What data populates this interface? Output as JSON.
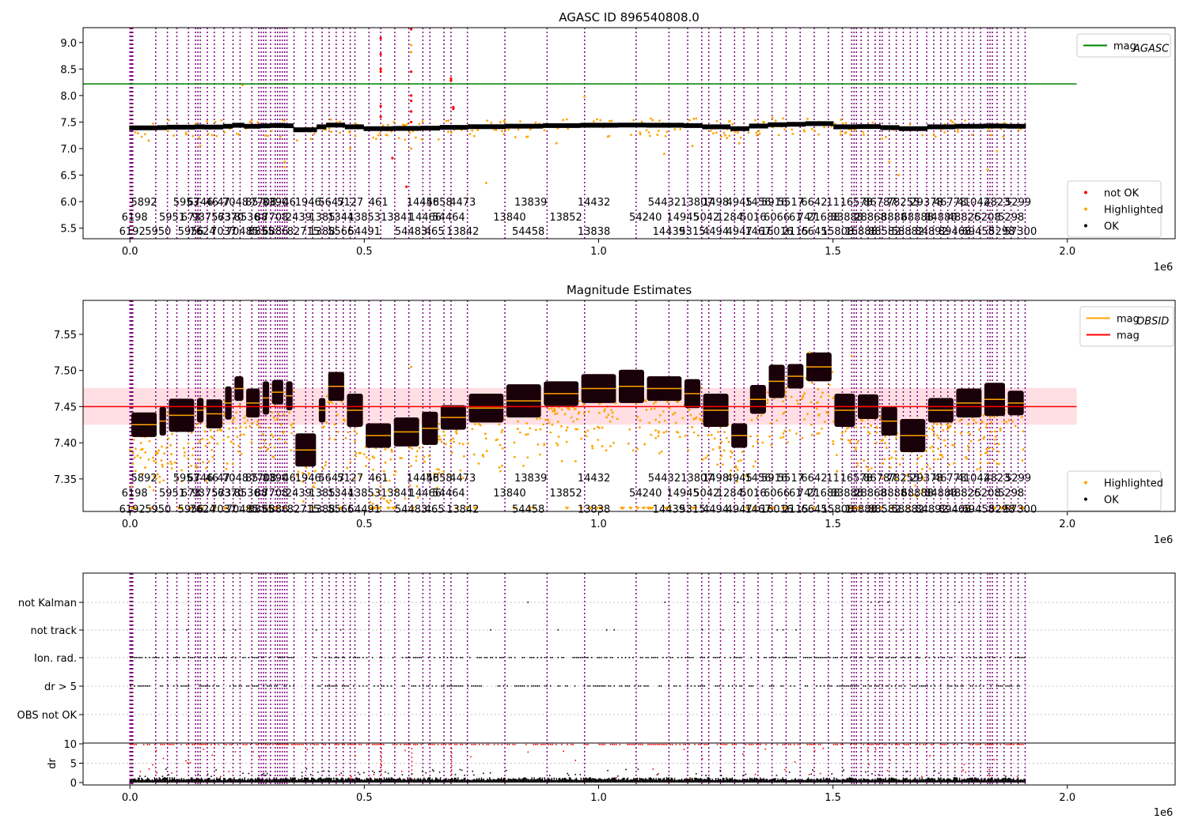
{
  "chart_data": [
    {
      "type": "scatter",
      "title": "AGASC ID 896540808.0",
      "x_scale_label": "1e6",
      "xlim": [
        -0.1,
        2.23
      ],
      "ylim": [
        5.3,
        9.28
      ],
      "x_ticks": [
        {
          "v": 0.0,
          "label": "0.0"
        },
        {
          "v": 0.5,
          "label": "0.5"
        },
        {
          "v": 1.0,
          "label": "1.0"
        },
        {
          "v": 1.5,
          "label": "1.5"
        },
        {
          "v": 2.0,
          "label": "2.0"
        }
      ],
      "y_ticks": [
        {
          "v": 5.5,
          "label": "5.5"
        },
        {
          "v": 6.0,
          "label": "6.0"
        },
        {
          "v": 6.5,
          "label": "6.5"
        },
        {
          "v": 7.0,
          "label": "7.0"
        },
        {
          "v": 7.5,
          "label": "7.5"
        },
        {
          "v": 8.0,
          "label": "8.0"
        },
        {
          "v": 8.5,
          "label": "8.5"
        },
        {
          "v": 9.0,
          "label": "9.0"
        }
      ],
      "obsid_label_y": [
        6.0,
        5.72,
        5.45
      ],
      "hlines": [
        {
          "y": 8.22,
          "x0": -0.1,
          "x1": 2.02,
          "color": "#008000"
        }
      ],
      "legends": [
        {
          "position": "top-right",
          "entries": [
            {
              "kind": "line",
              "color": "#008000",
              "label": "mag",
              "sub": "AGASC"
            }
          ]
        },
        {
          "position": "bottom-right",
          "entries": [
            {
              "kind": "dot",
              "color": "#ff0000",
              "label": "not OK"
            },
            {
              "kind": "dot",
              "color": "#ffa500",
              "label": "Highlighted"
            },
            {
              "kind": "dot",
              "color": "#000000",
              "label": "OK"
            }
          ]
        }
      ],
      "red_points": [
        [
          0.535,
          9.08
        ],
        [
          0.535,
          8.78
        ],
        [
          0.535,
          8.5
        ],
        [
          0.535,
          8.45
        ],
        [
          0.535,
          7.8
        ],
        [
          0.535,
          7.6
        ],
        [
          0.56,
          6.82
        ],
        [
          0.6,
          9.25
        ],
        [
          0.6,
          8.45
        ],
        [
          0.6,
          8.0
        ],
        [
          0.6,
          7.9
        ],
        [
          0.6,
          7.7
        ],
        [
          0.6,
          7.5
        ],
        [
          0.59,
          6.28
        ],
        [
          0.685,
          8.32
        ],
        [
          0.685,
          8.28
        ],
        [
          0.69,
          7.78
        ],
        [
          0.69,
          7.75
        ]
      ],
      "orange_points": [
        [
          0.6,
          8.95
        ],
        [
          0.6,
          8.82
        ],
        [
          0.97,
          7.98
        ],
        [
          0.24,
          8.2
        ],
        [
          0.04,
          7.15
        ],
        [
          0.15,
          7.05
        ],
        [
          0.33,
          6.75
        ],
        [
          0.33,
          6.65
        ],
        [
          0.47,
          7.0
        ],
        [
          0.6,
          7.0
        ],
        [
          0.76,
          6.35
        ],
        [
          0.91,
          7.1
        ],
        [
          1.14,
          6.9
        ],
        [
          1.2,
          7.05
        ],
        [
          1.27,
          7.25
        ],
        [
          1.3,
          7.1
        ],
        [
          1.62,
          6.75
        ],
        [
          1.64,
          6.5
        ],
        [
          1.83,
          6.6
        ],
        [
          1.85,
          6.95
        ]
      ],
      "black_band": {
        "lower_offset": -0.05,
        "upper_offset": 0.04
      }
    },
    {
      "type": "scatter",
      "title": "Magnitude Estimates",
      "x_scale_label": "1e6",
      "xlim": [
        -0.1,
        2.23
      ],
      "ylim": [
        7.305,
        7.597
      ],
      "x_ticks": [
        {
          "v": 0.0,
          "label": "0.0"
        },
        {
          "v": 0.5,
          "label": "0.5"
        },
        {
          "v": 1.0,
          "label": "1.0"
        },
        {
          "v": 1.5,
          "label": "1.5"
        },
        {
          "v": 2.0,
          "label": "2.0"
        }
      ],
      "y_ticks": [
        {
          "v": 7.35,
          "label": "7.35"
        },
        {
          "v": 7.4,
          "label": "7.40"
        },
        {
          "v": 7.45,
          "label": "7.45"
        },
        {
          "v": 7.5,
          "label": "7.50"
        },
        {
          "v": 7.55,
          "label": "7.55"
        }
      ],
      "obsid_label_y": [
        7.352,
        7.331,
        7.309
      ],
      "mag_band": {
        "y0": 7.425,
        "y1": 7.476,
        "x0": -0.1,
        "x1": 2.02,
        "color": "#ffc0c8"
      },
      "hlines": [
        {
          "y": 7.45,
          "x0": -0.1,
          "x1": 2.02,
          "color": "#ff0000"
        }
      ],
      "legends": [
        {
          "position": "top-right",
          "entries": [
            {
              "kind": "line",
              "color": "#ffa500",
              "label": "mag",
              "sub": "OBSID"
            },
            {
              "kind": "line",
              "color": "#ff0000",
              "label": "mag"
            }
          ]
        },
        {
          "position": "bottom-right",
          "entries": [
            {
              "kind": "dot",
              "color": "#ffa500",
              "label": "Highlighted"
            },
            {
              "kind": "dot",
              "color": "#000000",
              "label": "OK"
            }
          ]
        }
      ],
      "obs_segments": [
        [
          0.0,
          0.06,
          7.425
        ],
        [
          0.06,
          0.08,
          7.43
        ],
        [
          0.08,
          0.14,
          7.438
        ],
        [
          0.14,
          0.16,
          7.445
        ],
        [
          0.16,
          0.2,
          7.44
        ],
        [
          0.2,
          0.22,
          7.455
        ],
        [
          0.22,
          0.245,
          7.475
        ],
        [
          0.245,
          0.28,
          7.455
        ],
        [
          0.28,
          0.3,
          7.462
        ],
        [
          0.3,
          0.33,
          7.47
        ],
        [
          0.33,
          0.35,
          7.465
        ],
        [
          0.35,
          0.4,
          7.39
        ],
        [
          0.4,
          0.42,
          7.445
        ],
        [
          0.42,
          0.46,
          7.478
        ],
        [
          0.46,
          0.5,
          7.445
        ],
        [
          0.5,
          0.56,
          7.41
        ],
        [
          0.56,
          0.62,
          7.415
        ],
        [
          0.62,
          0.66,
          7.42
        ],
        [
          0.66,
          0.72,
          7.435
        ],
        [
          0.72,
          0.8,
          7.448
        ],
        [
          0.8,
          0.88,
          7.458
        ],
        [
          0.88,
          0.96,
          7.468
        ],
        [
          0.96,
          1.04,
          7.475
        ],
        [
          1.04,
          1.1,
          7.478
        ],
        [
          1.1,
          1.18,
          7.475
        ],
        [
          1.18,
          1.22,
          7.468
        ],
        [
          1.22,
          1.28,
          7.445
        ],
        [
          1.28,
          1.32,
          7.41
        ],
        [
          1.32,
          1.36,
          7.46
        ],
        [
          1.36,
          1.4,
          7.485
        ],
        [
          1.4,
          1.44,
          7.492
        ],
        [
          1.44,
          1.5,
          7.505
        ],
        [
          1.5,
          1.55,
          7.445
        ],
        [
          1.55,
          1.6,
          7.45
        ],
        [
          1.6,
          1.64,
          7.43
        ],
        [
          1.64,
          1.7,
          7.41
        ],
        [
          1.7,
          1.76,
          7.445
        ],
        [
          1.76,
          1.82,
          7.455
        ],
        [
          1.82,
          1.87,
          7.46
        ],
        [
          1.87,
          1.91,
          7.455
        ]
      ]
    },
    {
      "type": "scatter",
      "title": "",
      "x_scale_label": "1e6",
      "xlim": [
        -0.1,
        2.23
      ],
      "categories": [
        "not Kalman",
        "not track",
        "Ion. rad.",
        "dr > 5",
        "OBS not OK"
      ],
      "dr_ylim": [
        -0.5,
        10.5
      ],
      "dr_ticks": [
        {
          "v": 0,
          "label": "0"
        },
        {
          "v": 5,
          "label": "5"
        },
        {
          "v": 10,
          "label": "10"
        }
      ],
      "dr_ylabel": "dr",
      "x_ticks": [
        {
          "v": 0.0,
          "label": "0.0"
        },
        {
          "v": 0.5,
          "label": "0.5"
        },
        {
          "v": 1.0,
          "label": "1.0"
        },
        {
          "v": 1.5,
          "label": "1.5"
        },
        {
          "v": 2.0,
          "label": "2.0"
        }
      ]
    }
  ],
  "obsid_vlines": [
    0.0,
    0.002,
    0.004,
    0.006,
    0.055,
    0.08,
    0.1,
    0.125,
    0.14,
    0.145,
    0.15,
    0.165,
    0.18,
    0.2,
    0.22,
    0.235,
    0.26,
    0.275,
    0.28,
    0.285,
    0.29,
    0.3,
    0.31,
    0.315,
    0.32,
    0.325,
    0.33,
    0.335,
    0.35,
    0.375,
    0.39,
    0.41,
    0.425,
    0.44,
    0.455,
    0.47,
    0.48,
    0.51,
    0.535,
    0.565,
    0.595,
    0.625,
    0.64,
    0.67,
    0.685,
    0.72,
    0.8,
    0.89,
    0.97,
    1.08,
    1.15,
    1.19,
    1.22,
    1.235,
    1.26,
    1.29,
    1.31,
    1.34,
    1.37,
    1.4,
    1.43,
    1.46,
    1.49,
    1.52,
    1.54,
    1.545,
    1.55,
    1.56,
    1.575,
    1.59,
    1.6,
    1.605,
    1.62,
    1.635,
    1.65,
    1.665,
    1.68,
    1.7,
    1.715,
    1.73,
    1.745,
    1.76,
    1.775,
    1.79,
    1.8,
    1.815,
    1.83,
    1.835,
    1.84,
    1.85,
    1.865,
    1.88,
    1.895,
    1.91
  ],
  "obsid_labels": {
    "row1": [
      {
        "x": 0.03,
        "t": "5892"
      },
      {
        "x": 0.12,
        "t": "5953"
      },
      {
        "x": 0.15,
        "t": "6746"
      },
      {
        "x": 0.175,
        "t": "46"
      },
      {
        "x": 0.2,
        "t": "47"
      },
      {
        "x": 0.225,
        "t": "7048"
      },
      {
        "x": 0.26,
        "t": "85"
      },
      {
        "x": 0.285,
        "t": "7708"
      },
      {
        "x": 0.31,
        "t": "8390"
      },
      {
        "x": 0.34,
        "t": "46"
      },
      {
        "x": 0.38,
        "t": "1946"
      },
      {
        "x": 0.43,
        "t": "5647"
      },
      {
        "x": 0.47,
        "t": "5127"
      },
      {
        "x": 0.53,
        "t": "461"
      },
      {
        "x": 0.625,
        "t": "14456"
      },
      {
        "x": 0.66,
        "t": "4858"
      },
      {
        "x": 0.71,
        "t": "4473"
      },
      {
        "x": 0.855,
        "t": "13839"
      },
      {
        "x": 0.99,
        "t": "14432"
      },
      {
        "x": 1.14,
        "t": "54432"
      },
      {
        "x": 1.21,
        "t": "13807"
      },
      {
        "x": 1.25,
        "t": "1498"
      },
      {
        "x": 1.3,
        "t": "4945"
      },
      {
        "x": 1.34,
        "t": "1456"
      },
      {
        "x": 1.375,
        "t": "5916"
      },
      {
        "x": 1.41,
        "t": "5517"
      },
      {
        "x": 1.46,
        "t": "6642"
      },
      {
        "x": 1.5,
        "t": "11"
      },
      {
        "x": 1.55,
        "t": "16578"
      },
      {
        "x": 1.6,
        "t": "86787"
      },
      {
        "x": 1.65,
        "t": "78255"
      },
      {
        "x": 1.7,
        "t": "29378"
      },
      {
        "x": 1.75,
        "t": "46778"
      },
      {
        "x": 1.8,
        "t": "41042"
      },
      {
        "x": 1.85,
        "t": "4823"
      },
      {
        "x": 1.895,
        "t": "5299"
      }
    ],
    "row2": [
      {
        "x": 0.01,
        "t": "6198"
      },
      {
        "x": 0.09,
        "t": "5951"
      },
      {
        "x": 0.13,
        "t": "673"
      },
      {
        "x": 0.16,
        "t": "9375"
      },
      {
        "x": 0.195,
        "t": "573"
      },
      {
        "x": 0.215,
        "t": "6370"
      },
      {
        "x": 0.25,
        "t": "8536"
      },
      {
        "x": 0.28,
        "t": "88"
      },
      {
        "x": 0.31,
        "t": "7708"
      },
      {
        "x": 0.36,
        "t": "2439"
      },
      {
        "x": 0.41,
        "t": "1385"
      },
      {
        "x": 0.45,
        "t": "1344"
      },
      {
        "x": 0.5,
        "t": "13853"
      },
      {
        "x": 0.57,
        "t": "13841"
      },
      {
        "x": 0.63,
        "t": "14466"
      },
      {
        "x": 0.68,
        "t": "54464"
      },
      {
        "x": 0.81,
        "t": "13840"
      },
      {
        "x": 0.93,
        "t": "13852"
      },
      {
        "x": 1.1,
        "t": "54240"
      },
      {
        "x": 1.18,
        "t": "14945"
      },
      {
        "x": 1.23,
        "t": "5042"
      },
      {
        "x": 1.28,
        "t": "1284"
      },
      {
        "x": 1.33,
        "t": "5016"
      },
      {
        "x": 1.38,
        "t": "6066"
      },
      {
        "x": 1.42,
        "t": "61"
      },
      {
        "x": 1.445,
        "t": "747"
      },
      {
        "x": 1.48,
        "t": "21688"
      },
      {
        "x": 1.53,
        "t": "83888"
      },
      {
        "x": 1.58,
        "t": "28868"
      },
      {
        "x": 1.63,
        "t": "8888"
      },
      {
        "x": 1.68,
        "t": "68888"
      },
      {
        "x": 1.73,
        "t": "84886"
      },
      {
        "x": 1.78,
        "t": "48826"
      },
      {
        "x": 1.83,
        "t": "5208"
      },
      {
        "x": 1.88,
        "t": "5298"
      }
    ],
    "row3": [
      {
        "x": 0.005,
        "t": "6192"
      },
      {
        "x": 0.06,
        "t": "5950"
      },
      {
        "x": 0.13,
        "t": "5956"
      },
      {
        "x": 0.155,
        "t": "7624"
      },
      {
        "x": 0.2,
        "t": "7037"
      },
      {
        "x": 0.24,
        "t": "70485"
      },
      {
        "x": 0.28,
        "t": "8855"
      },
      {
        "x": 0.31,
        "t": "6886"
      },
      {
        "x": 0.37,
        "t": "82715"
      },
      {
        "x": 0.41,
        "t": "1388"
      },
      {
        "x": 0.45,
        "t": "5566"
      },
      {
        "x": 0.5,
        "t": "54491"
      },
      {
        "x": 0.6,
        "t": "54483"
      },
      {
        "x": 0.65,
        "t": "465"
      },
      {
        "x": 0.71,
        "t": "13842"
      },
      {
        "x": 0.85,
        "t": "54458"
      },
      {
        "x": 0.99,
        "t": "13838"
      },
      {
        "x": 1.15,
        "t": "14439"
      },
      {
        "x": 1.2,
        "t": "5315"
      },
      {
        "x": 1.25,
        "t": "4494"
      },
      {
        "x": 1.3,
        "t": "4947"
      },
      {
        "x": 1.34,
        "t": "1467"
      },
      {
        "x": 1.38,
        "t": "16016"
      },
      {
        "x": 1.42,
        "t": "2115"
      },
      {
        "x": 1.46,
        "t": "6645"
      },
      {
        "x": 1.51,
        "t": "15808"
      },
      {
        "x": 1.56,
        "t": "16888"
      },
      {
        "x": 1.61,
        "t": "88582"
      },
      {
        "x": 1.66,
        "t": "58882"
      },
      {
        "x": 1.71,
        "t": "84892"
      },
      {
        "x": 1.76,
        "t": "89468"
      },
      {
        "x": 1.81,
        "t": "69458"
      },
      {
        "x": 1.86,
        "t": "5298"
      },
      {
        "x": 1.9,
        "t": "57300"
      }
    ]
  }
}
